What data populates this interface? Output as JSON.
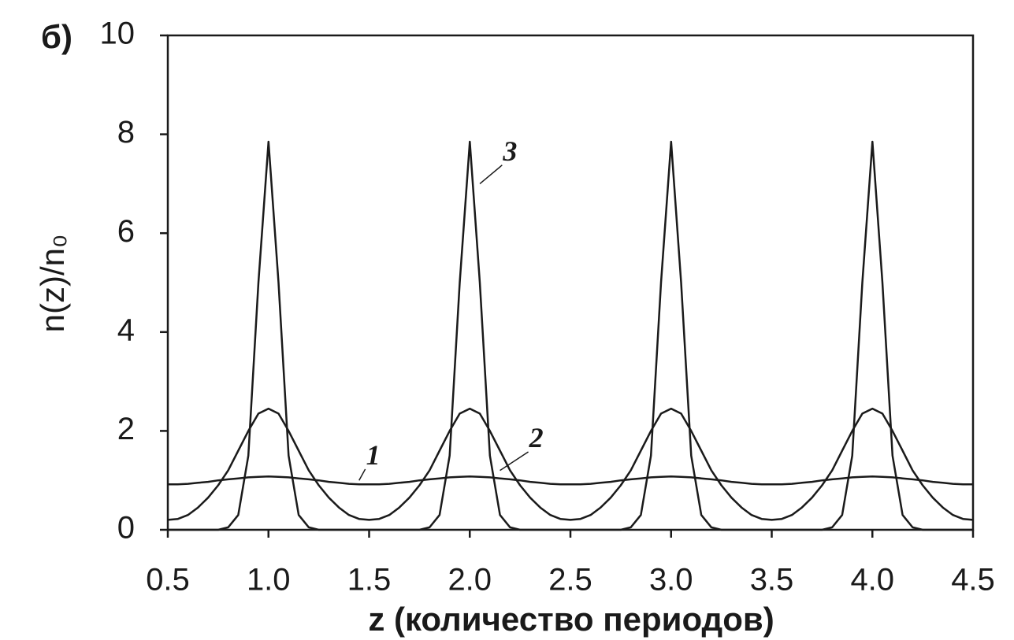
{
  "chart_data": {
    "type": "line",
    "title": "б)",
    "x_label": "z (количество периодов)",
    "y_label": "n(z)/n₀",
    "x": [
      0.5,
      0.55,
      0.6,
      0.65,
      0.7,
      0.75,
      0.8,
      0.85,
      0.9,
      0.95,
      1.0,
      1.05,
      1.1,
      1.15,
      1.2,
      1.25,
      1.3,
      1.35,
      1.4,
      1.45,
      1.5,
      1.55,
      1.6,
      1.65,
      1.7,
      1.75,
      1.8,
      1.85,
      1.9,
      1.95,
      2.0,
      2.05,
      2.1,
      2.15,
      2.2,
      2.25,
      2.3,
      2.35,
      2.4,
      2.45,
      2.5,
      2.55,
      2.6,
      2.65,
      2.7,
      2.75,
      2.8,
      2.85,
      2.9,
      2.95,
      3.0,
      3.05,
      3.1,
      3.15,
      3.2,
      3.25,
      3.3,
      3.35,
      3.4,
      3.45,
      3.5,
      3.55,
      3.6,
      3.65,
      3.7,
      3.75,
      3.8,
      3.85,
      3.9,
      3.95,
      4.0,
      4.05,
      4.1,
      4.15,
      4.2,
      4.25,
      4.3,
      4.35,
      4.4,
      4.45,
      4.5
    ],
    "series": [
      {
        "name": "1",
        "color": "#1a1a1a",
        "values": [
          0.92,
          0.92,
          0.93,
          0.95,
          0.97,
          1.0,
          1.02,
          1.04,
          1.06,
          1.07,
          1.08,
          1.07,
          1.06,
          1.04,
          1.02,
          1.0,
          0.97,
          0.95,
          0.93,
          0.92,
          0.92,
          0.92,
          0.93,
          0.95,
          0.97,
          1.0,
          1.02,
          1.04,
          1.06,
          1.07,
          1.08,
          1.07,
          1.06,
          1.04,
          1.02,
          1.0,
          0.97,
          0.95,
          0.93,
          0.92,
          0.92,
          0.92,
          0.93,
          0.95,
          0.97,
          1.0,
          1.02,
          1.04,
          1.06,
          1.07,
          1.08,
          1.07,
          1.06,
          1.04,
          1.02,
          1.0,
          0.97,
          0.95,
          0.93,
          0.92,
          0.92,
          0.92,
          0.93,
          0.95,
          0.97,
          1.0,
          1.02,
          1.04,
          1.06,
          1.07,
          1.08,
          1.07,
          1.06,
          1.04,
          1.02,
          1.0,
          0.97,
          0.95,
          0.93,
          0.92,
          0.92
        ]
      },
      {
        "name": "2",
        "color": "#1a1a1a",
        "values": [
          0.2,
          0.22,
          0.3,
          0.45,
          0.65,
          0.9,
          1.2,
          1.6,
          2.0,
          2.35,
          2.45,
          2.35,
          2.0,
          1.6,
          1.2,
          0.9,
          0.65,
          0.45,
          0.3,
          0.22,
          0.2,
          0.22,
          0.3,
          0.45,
          0.65,
          0.9,
          1.2,
          1.6,
          2.0,
          2.35,
          2.45,
          2.35,
          2.0,
          1.6,
          1.2,
          0.9,
          0.65,
          0.45,
          0.3,
          0.22,
          0.2,
          0.22,
          0.3,
          0.45,
          0.65,
          0.9,
          1.2,
          1.6,
          2.0,
          2.35,
          2.45,
          2.35,
          2.0,
          1.6,
          1.2,
          0.9,
          0.65,
          0.45,
          0.3,
          0.22,
          0.2,
          0.22,
          0.3,
          0.45,
          0.65,
          0.9,
          1.2,
          1.6,
          2.0,
          2.35,
          2.45,
          2.35,
          2.0,
          1.6,
          1.2,
          0.9,
          0.65,
          0.45,
          0.3,
          0.22,
          0.2
        ]
      },
      {
        "name": "3",
        "color": "#1a1a1a",
        "values": [
          0,
          0,
          0,
          0,
          0,
          0,
          0.05,
          0.3,
          1.5,
          5.0,
          7.85,
          5.0,
          1.5,
          0.3,
          0.05,
          0,
          0,
          0,
          0,
          0,
          0,
          0,
          0,
          0,
          0,
          0,
          0.05,
          0.3,
          1.5,
          5.0,
          7.85,
          5.0,
          1.5,
          0.3,
          0.05,
          0,
          0,
          0,
          0,
          0,
          0,
          0,
          0,
          0,
          0,
          0,
          0.05,
          0.3,
          1.5,
          5.0,
          7.85,
          5.0,
          1.5,
          0.3,
          0.05,
          0,
          0,
          0,
          0,
          0,
          0,
          0,
          0,
          0,
          0,
          0,
          0.05,
          0.3,
          1.5,
          5.0,
          7.85,
          5.0,
          1.5,
          0.3,
          0.05,
          0,
          0,
          0,
          0,
          0,
          0
        ]
      }
    ],
    "xlim": [
      0.5,
      4.5
    ],
    "xticks": [
      0.5,
      {
        "value": 1,
        "label": "1.0"
      },
      1.5,
      {
        "value": 2,
        "label": "2.0"
      },
      2.5,
      {
        "value": 3,
        "label": "3.0"
      },
      3.5,
      {
        "value": 4,
        "label": "4.0"
      },
      4.5
    ],
    "ylim": [
      0,
      10
    ],
    "yticks": [
      0,
      2,
      4,
      6,
      8,
      10
    ],
    "grid": false
  }
}
